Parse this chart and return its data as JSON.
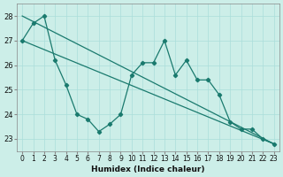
{
  "xlabel": "Humidex (Indice chaleur)",
  "background_color": "#cceee8",
  "grid_color": "#aaddda",
  "line_color": "#1a7a6e",
  "xlim": [
    -0.5,
    23.5
  ],
  "ylim": [
    22.5,
    28.5
  ],
  "yticks": [
    23,
    24,
    25,
    26,
    27,
    28
  ],
  "xticks": [
    0,
    1,
    2,
    3,
    4,
    5,
    6,
    7,
    8,
    9,
    10,
    11,
    12,
    13,
    14,
    15,
    16,
    17,
    18,
    19,
    20,
    21,
    22,
    23
  ],
  "series_x": [
    0,
    1,
    2,
    3,
    4,
    5,
    6,
    7,
    8,
    9,
    10,
    11,
    12,
    13,
    14,
    15,
    16,
    17,
    18,
    19,
    20,
    21,
    22,
    23
  ],
  "series_y": [
    27.0,
    27.7,
    28.0,
    26.2,
    25.2,
    24.0,
    23.8,
    23.3,
    23.6,
    24.0,
    25.6,
    26.1,
    26.1,
    27.0,
    25.6,
    26.2,
    25.4,
    25.4,
    24.8,
    23.7,
    23.4,
    23.4,
    23.0,
    22.8
  ],
  "trend1_x": [
    0,
    23
  ],
  "trend1_y": [
    28.0,
    22.8
  ],
  "trend2_x": [
    0,
    23
  ],
  "trend2_y": [
    27.0,
    22.8
  ],
  "xlabel_fontsize": 6.5,
  "tick_fontsize": 5.5
}
